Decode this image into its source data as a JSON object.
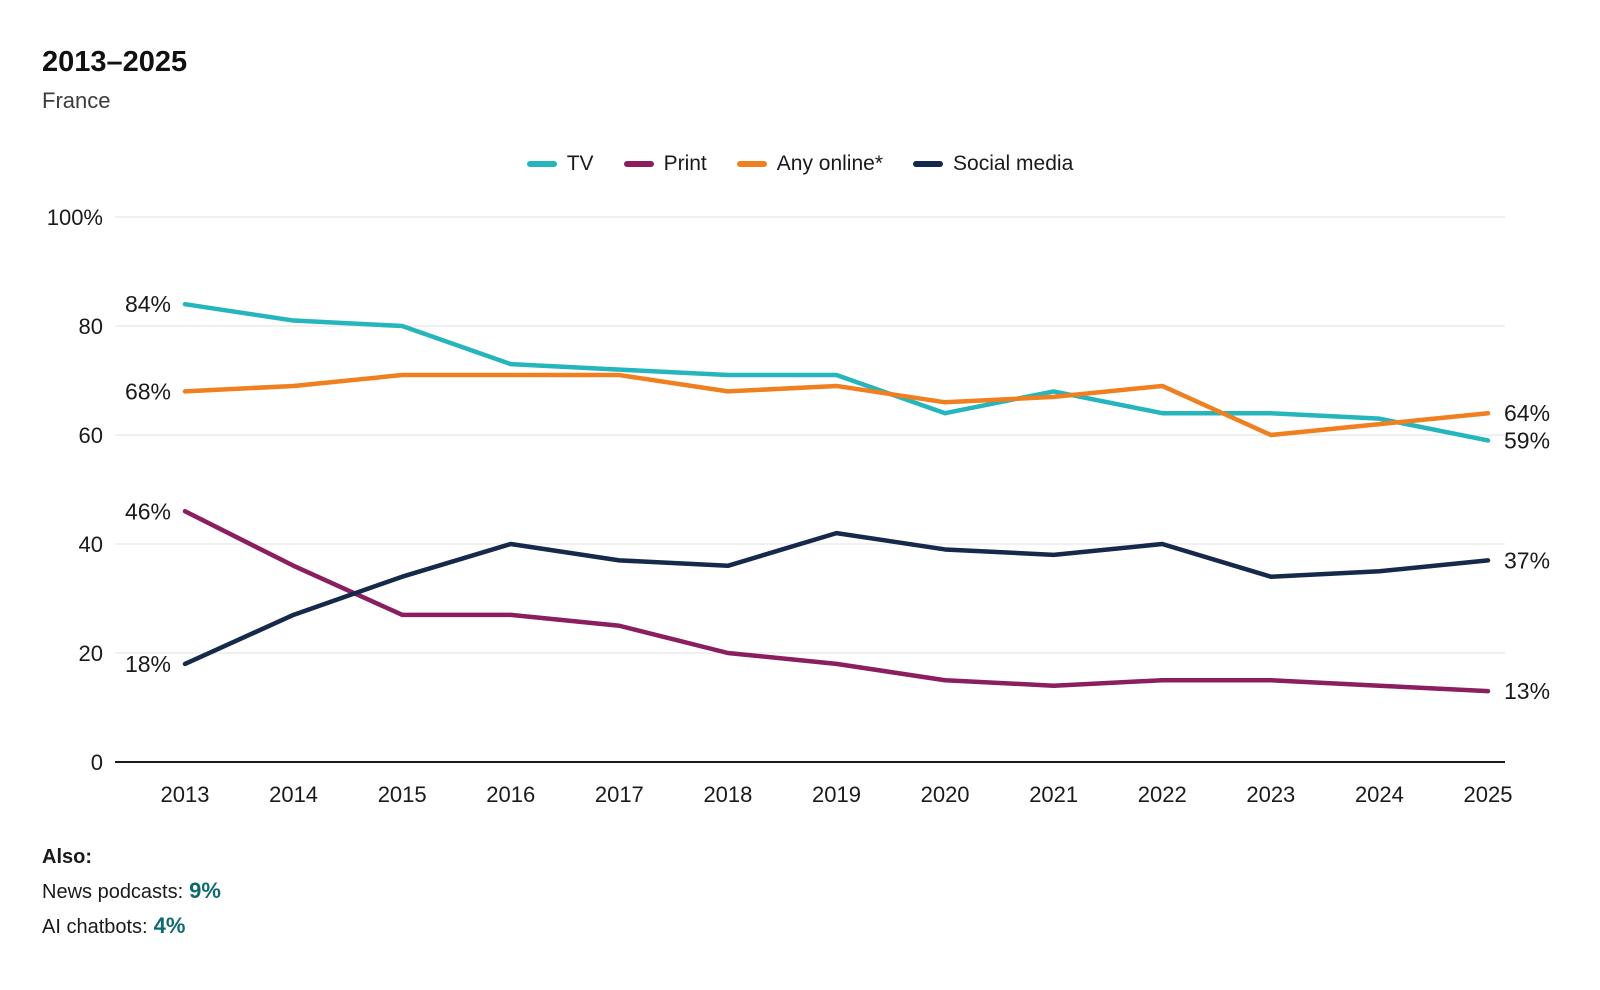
{
  "chart_data": {
    "type": "line",
    "title": "2013–2025",
    "subtitle": "France",
    "xlabel": "",
    "ylabel": "",
    "ylim": [
      0,
      100
    ],
    "grid": true,
    "legend_position": "top",
    "x": [
      2013,
      2014,
      2015,
      2016,
      2017,
      2018,
      2019,
      2020,
      2021,
      2022,
      2023,
      2024,
      2025
    ],
    "yticks": [
      {
        "value": 0,
        "label": "0"
      },
      {
        "value": 20,
        "label": "20"
      },
      {
        "value": 40,
        "label": "40"
      },
      {
        "value": 60,
        "label": "60"
      },
      {
        "value": 80,
        "label": "80"
      },
      {
        "value": 100,
        "label": "100%"
      }
    ],
    "series": [
      {
        "name": "TV",
        "color": "#25b6bd",
        "values": [
          84,
          81,
          80,
          73,
          72,
          71,
          71,
          64,
          68,
          64,
          64,
          63,
          59
        ],
        "start_label": "84%",
        "end_label": "59%"
      },
      {
        "name": "Print",
        "color": "#8a1e5f",
        "values": [
          46,
          36,
          27,
          27,
          25,
          20,
          18,
          15,
          14,
          15,
          15,
          14,
          13
        ],
        "start_label": "46%",
        "end_label": "13%"
      },
      {
        "name": "Any online*",
        "color": "#f07f1f",
        "values": [
          68,
          69,
          71,
          71,
          71,
          68,
          69,
          66,
          67,
          69,
          60,
          62,
          64
        ],
        "start_label": "68%",
        "end_label": "64%"
      },
      {
        "name": "Social media",
        "color": "#15294a",
        "values": [
          18,
          27,
          34,
          40,
          37,
          36,
          42,
          39,
          38,
          40,
          34,
          35,
          37
        ],
        "start_label": "18%",
        "end_label": "37%"
      }
    ]
  },
  "footer": {
    "also": "Also:",
    "notes": [
      {
        "label": "News podcasts:",
        "value": "9%"
      },
      {
        "label": "AI chatbots:",
        "value": "4%"
      }
    ]
  }
}
